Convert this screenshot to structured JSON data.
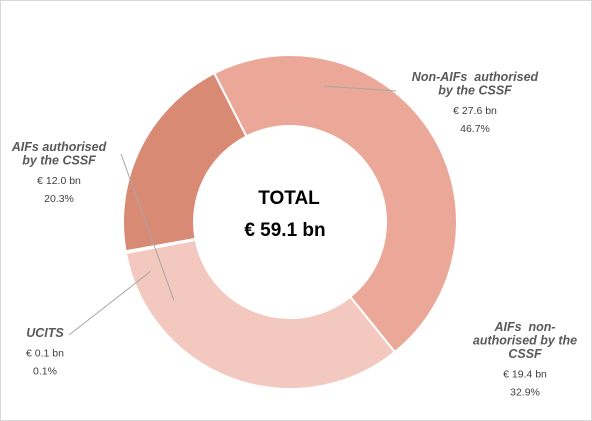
{
  "chart_data": {
    "type": "pie",
    "variant": "donut",
    "center_title": "TOTAL",
    "center_value": "€ 59.1 bn",
    "slices": [
      {
        "name_lines": [
          "Non-AIFs  authorised",
          "by the CSSF"
        ],
        "amount_label": "€ 27.6 bn",
        "percent_label": "46.7%",
        "value": 27.6,
        "percent": 46.7,
        "color": "#eba898"
      },
      {
        "name_lines": [
          "AIFs  non-",
          "authorised by the",
          "CSSF"
        ],
        "amount_label": "€ 19.4 bn",
        "percent_label": "32.9%",
        "value": 19.4,
        "percent": 32.9,
        "color": "#f2c8bf"
      },
      {
        "name_lines": [
          "UCITS"
        ],
        "amount_label": "€ 0.1 bn",
        "percent_label": "0.1%",
        "value": 0.1,
        "percent": 0.1,
        "color": "#c9826f"
      },
      {
        "name_lines": [
          "AIFs authorised",
          "by the CSSF"
        ],
        "amount_label": "€ 12.0 bn",
        "percent_label": "20.3%",
        "value": 12.0,
        "percent": 20.3,
        "color": "#d98a74"
      }
    ]
  }
}
